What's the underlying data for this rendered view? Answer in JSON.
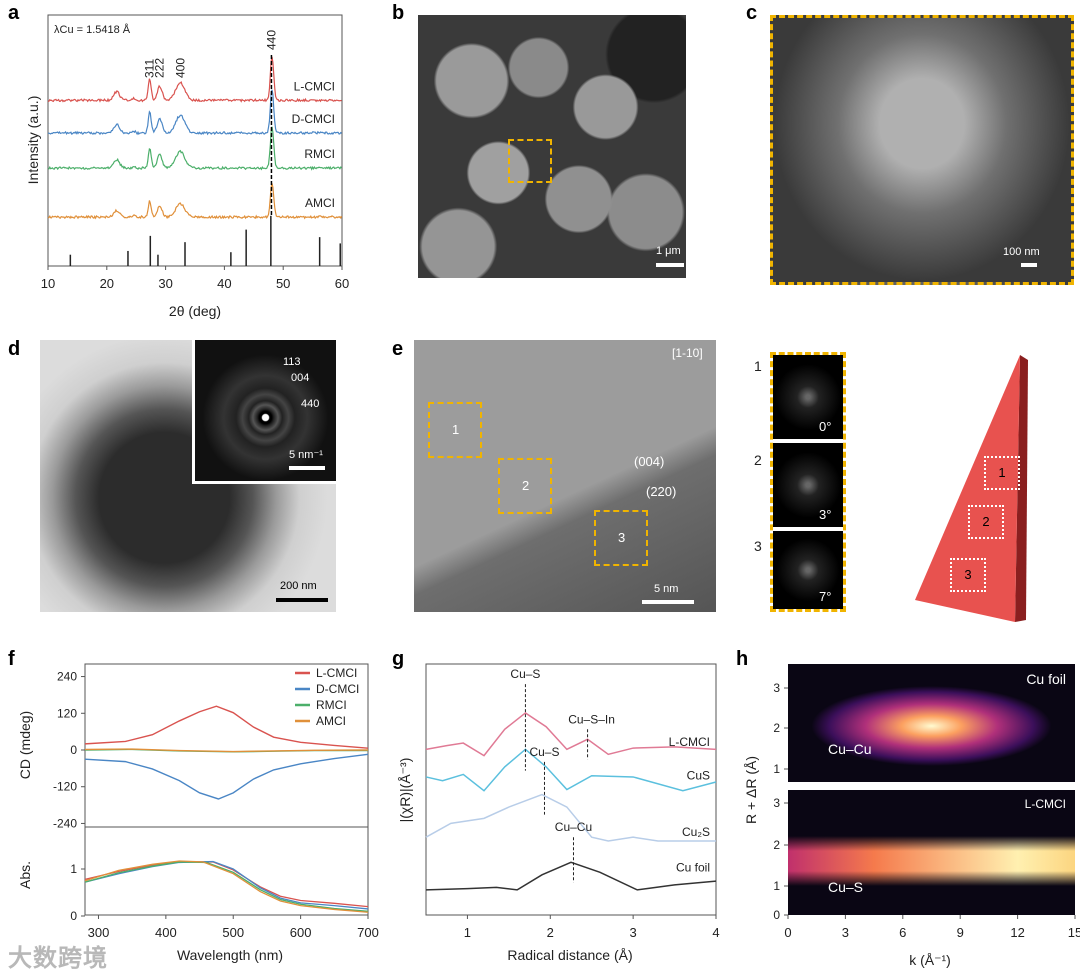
{
  "panels": {
    "a": "a",
    "b": "b",
    "c": "c",
    "d": "d",
    "e": "e",
    "f": "f",
    "g": "g",
    "h": "h"
  },
  "watermark": "大数跨境",
  "panel_b": {
    "scale": "1 μm"
  },
  "panel_c": {
    "scale": "100 nm"
  },
  "panel_d": {
    "scale": "200 nm",
    "inset_scale": "5 nm⁻¹",
    "rings": [
      "113",
      "004",
      "440"
    ]
  },
  "panel_e": {
    "zone_axis": "[1-10]",
    "planes": [
      "(004)",
      "(220)"
    ],
    "scale": "5 nm",
    "regions": [
      "1",
      "2",
      "3"
    ],
    "fft": [
      {
        "n": "1",
        "angle": "0°"
      },
      {
        "n": "2",
        "angle": "3°"
      },
      {
        "n": "3",
        "angle": "7°"
      }
    ],
    "model_regions": [
      "1",
      "2",
      "3"
    ]
  },
  "colors": {
    "L-CMCI": "#d9534f",
    "D-CMCI": "#4a86c5",
    "RMCI": "#4caf6a",
    "AMCI": "#e0903a",
    "yellow": "#f0b400"
  },
  "chart_data": [
    {
      "id": "a",
      "type": "line",
      "title": "",
      "xlabel": "2θ (deg)",
      "ylabel": "Intensity (a.u.)",
      "xlim": [
        10,
        60
      ],
      "xticks": [
        10,
        20,
        30,
        40,
        50,
        60
      ],
      "annotation": "λCu = 1.5418 Å",
      "peak_labels": [
        "311",
        "222",
        "400",
        "440"
      ],
      "peak_label_positions": [
        27.3,
        29.0,
        32.5,
        48.0
      ],
      "dashed_line_x": 48.0,
      "series": [
        {
          "name": "L-CMCI",
          "offset": 6.6,
          "scale": 1.0
        },
        {
          "name": "D-CMCI",
          "offset": 5.3,
          "scale": 1.0
        },
        {
          "name": "RMCI",
          "offset": 3.9,
          "scale": 0.95
        },
        {
          "name": "AMCI",
          "offset": 1.95,
          "scale": 0.75
        }
      ],
      "peaks": [
        [
          21.7,
          0.35,
          0.7
        ],
        [
          24.6,
          0.08,
          0.3
        ],
        [
          27.3,
          0.85,
          0.35
        ],
        [
          29.0,
          0.55,
          0.6
        ],
        [
          32.5,
          0.7,
          1.1
        ],
        [
          48.1,
          1.75,
          0.4
        ]
      ],
      "reference_sticks": [
        [
          13.8,
          0.45
        ],
        [
          23.6,
          0.6
        ],
        [
          27.4,
          1.2
        ],
        [
          28.7,
          0.45
        ],
        [
          33.3,
          0.95
        ],
        [
          41.1,
          0.55
        ],
        [
          43.7,
          1.45
        ],
        [
          47.9,
          2.0
        ],
        [
          56.2,
          1.15
        ],
        [
          59.7,
          0.9
        ]
      ]
    },
    {
      "id": "f",
      "type": "line",
      "xlabel": "Wavelength (nm)",
      "xlim": [
        280,
        700
      ],
      "xticks": [
        300,
        400,
        500,
        600,
        700
      ],
      "top": {
        "ylabel": "CD (mdeg)",
        "ylim": [
          -240,
          240
        ],
        "yticks": [
          240,
          120,
          0,
          -120,
          -240
        ],
        "series": [
          {
            "name": "L-CMCI",
            "points": [
              [
                280,
                20
              ],
              [
                340,
                28
              ],
              [
                380,
                50
              ],
              [
                420,
                95
              ],
              [
                450,
                125
              ],
              [
                475,
                143
              ],
              [
                500,
                122
              ],
              [
                530,
                75
              ],
              [
                560,
                42
              ],
              [
                600,
                25
              ],
              [
                650,
                15
              ],
              [
                700,
                6
              ]
            ]
          },
          {
            "name": "D-CMCI",
            "points": [
              [
                280,
                -30
              ],
              [
                340,
                -38
              ],
              [
                380,
                -62
              ],
              [
                420,
                -100
              ],
              [
                450,
                -140
              ],
              [
                478,
                -160
              ],
              [
                500,
                -140
              ],
              [
                530,
                -95
              ],
              [
                560,
                -65
              ],
              [
                600,
                -45
              ],
              [
                650,
                -28
              ],
              [
                700,
                -14
              ]
            ]
          },
          {
            "name": "RMCI",
            "points": [
              [
                280,
                0
              ],
              [
                350,
                2
              ],
              [
                420,
                -3
              ],
              [
                500,
                -6
              ],
              [
                560,
                -4
              ],
              [
                620,
                -2
              ],
              [
                700,
                -2
              ]
            ]
          },
          {
            "name": "AMCI",
            "points": [
              [
                280,
                2
              ],
              [
                350,
                3
              ],
              [
                420,
                -2
              ],
              [
                500,
                -5
              ],
              [
                560,
                -3
              ],
              [
                620,
                -1
              ],
              [
                700,
                0
              ]
            ]
          }
        ]
      },
      "bottom": {
        "ylabel": "Abs.",
        "ylim": [
          0,
          1.6
        ],
        "yticks": [
          0,
          1
        ],
        "series": [
          {
            "name": "L-CMCI",
            "points": [
              [
                280,
                0.78
              ],
              [
                330,
                0.95
              ],
              [
                380,
                1.08
              ],
              [
                420,
                1.15
              ],
              [
                470,
                1.15
              ],
              [
                500,
                0.98
              ],
              [
                540,
                0.62
              ],
              [
                570,
                0.42
              ],
              [
                600,
                0.33
              ],
              [
                650,
                0.27
              ],
              [
                700,
                0.2
              ]
            ]
          },
          {
            "name": "D-CMCI",
            "points": [
              [
                280,
                0.72
              ],
              [
                330,
                0.9
              ],
              [
                380,
                1.05
              ],
              [
                420,
                1.14
              ],
              [
                470,
                1.16
              ],
              [
                500,
                1.0
              ],
              [
                540,
                0.6
              ],
              [
                570,
                0.38
              ],
              [
                600,
                0.28
              ],
              [
                650,
                0.22
              ],
              [
                700,
                0.15
              ]
            ]
          },
          {
            "name": "RMCI",
            "points": [
              [
                280,
                0.72
              ],
              [
                330,
                0.92
              ],
              [
                380,
                1.06
              ],
              [
                420,
                1.15
              ],
              [
                460,
                1.14
              ],
              [
                500,
                0.93
              ],
              [
                540,
                0.56
              ],
              [
                570,
                0.35
              ],
              [
                600,
                0.25
              ],
              [
                650,
                0.16
              ],
              [
                700,
                0.1
              ]
            ]
          },
          {
            "name": "AMCI",
            "points": [
              [
                280,
                0.75
              ],
              [
                330,
                0.97
              ],
              [
                380,
                1.1
              ],
              [
                420,
                1.17
              ],
              [
                455,
                1.15
              ],
              [
                500,
                0.9
              ],
              [
                540,
                0.52
              ],
              [
                570,
                0.32
              ],
              [
                600,
                0.22
              ],
              [
                650,
                0.14
              ],
              [
                700,
                0.08
              ]
            ]
          }
        ]
      }
    },
    {
      "id": "g",
      "type": "line",
      "xlabel": "Radical distance (Å)",
      "ylabel": "|(χR)|(Å⁻³)",
      "xlim": [
        0.5,
        4
      ],
      "xticks": [
        1,
        2,
        3,
        4
      ],
      "ylim": [
        0,
        10
      ],
      "series": [
        {
          "name": "L-CMCI",
          "color": "#e07a95",
          "points": [
            [
              0.5,
              6.6
            ],
            [
              0.75,
              6.75
            ],
            [
              0.95,
              6.85
            ],
            [
              1.2,
              6.35
            ],
            [
              1.45,
              7.4
            ],
            [
              1.7,
              8.05
            ],
            [
              1.95,
              7.5
            ],
            [
              2.2,
              6.6
            ],
            [
              2.45,
              7.0
            ],
            [
              2.7,
              6.4
            ],
            [
              3.0,
              6.65
            ],
            [
              3.5,
              6.7
            ],
            [
              4.0,
              6.6
            ]
          ]
        },
        {
          "name": "CuS",
          "color": "#5bc0de",
          "points": [
            [
              0.5,
              5.5
            ],
            [
              0.7,
              5.35
            ],
            [
              0.95,
              5.6
            ],
            [
              1.2,
              4.95
            ],
            [
              1.45,
              5.9
            ],
            [
              1.7,
              6.6
            ],
            [
              1.95,
              5.9
            ],
            [
              2.2,
              5.0
            ],
            [
              2.5,
              5.55
            ],
            [
              3.0,
              5.5
            ],
            [
              3.6,
              4.95
            ],
            [
              4.0,
              5.3
            ]
          ]
        },
        {
          "name": "Cu₂S",
          "color": "#b8cde8",
          "points": [
            [
              0.5,
              3.1
            ],
            [
              0.8,
              3.65
            ],
            [
              1.2,
              3.85
            ],
            [
              1.5,
              4.3
            ],
            [
              1.9,
              4.8
            ],
            [
              2.2,
              4.3
            ],
            [
              2.5,
              3.1
            ],
            [
              2.7,
              2.95
            ],
            [
              3.0,
              3.1
            ],
            [
              3.3,
              2.95
            ],
            [
              4.0,
              2.95
            ]
          ]
        },
        {
          "name": "Cu foil",
          "color": "#333333",
          "points": [
            [
              0.5,
              1.0
            ],
            [
              1.0,
              1.05
            ],
            [
              1.35,
              1.1
            ],
            [
              1.6,
              1.0
            ],
            [
              1.9,
              1.6
            ],
            [
              2.25,
              2.1
            ],
            [
              2.6,
              1.7
            ],
            [
              3.05,
              1.0
            ],
            [
              3.5,
              1.2
            ],
            [
              4.0,
              1.35
            ]
          ]
        }
      ],
      "annotations": [
        {
          "text": "Cu–S",
          "x": 1.7
        },
        {
          "text": "Cu–S–In",
          "x": 2.45
        },
        {
          "text": "Cu–S",
          "x": 1.93
        },
        {
          "text": "Cu–Cu",
          "x": 2.28
        }
      ]
    },
    {
      "id": "h",
      "type": "heatmap",
      "xlabel": "k (Å⁻¹)",
      "ylabel": "R + ΔR (Å)",
      "xlim": [
        0,
        15
      ],
      "xticks": [
        0,
        3,
        6,
        9,
        12,
        15
      ],
      "ylim": [
        0,
        3.5
      ],
      "yticks": [
        0,
        1,
        2,
        3
      ],
      "maps": [
        {
          "name": "Cu foil",
          "feature": "Cu–Cu",
          "peak_k": 7.5,
          "peak_R": 2.2
        },
        {
          "name": "L-CMCI",
          "feature": "Cu–S",
          "peak_k": 11,
          "peak_R": 1.25
        }
      ]
    }
  ]
}
